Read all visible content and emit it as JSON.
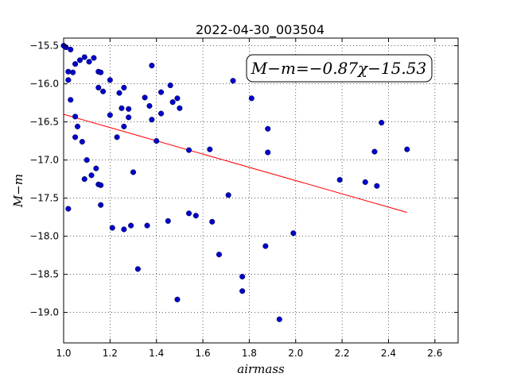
{
  "chart_data": {
    "type": "scatter",
    "title": "2022-04-30_003504",
    "xlabel": "airmass",
    "ylabel": "M−m",
    "xlim": [
      1.0,
      2.7
    ],
    "ylim": [
      -19.4,
      -15.4
    ],
    "xticks": [
      1.0,
      1.2,
      1.4,
      1.6,
      1.8,
      2.0,
      2.2,
      2.4,
      2.6
    ],
    "xtick_labels": [
      "1.0",
      "1.2",
      "1.4",
      "1.6",
      "1.8",
      "2.0",
      "2.2",
      "2.4",
      "2.6"
    ],
    "yticks": [
      -15.5,
      -16.0,
      -16.5,
      -17.0,
      -17.5,
      -18.0,
      -18.5,
      -19.0
    ],
    "ytick_labels": [
      "−15.5",
      "−16.0",
      "−16.5",
      "−17.0",
      "−17.5",
      "−18.0",
      "−18.5",
      "−19.0"
    ],
    "grid": true,
    "annotation": "M−m=−0.87χ−15.53",
    "point_color": "#0000cc",
    "fit_color": "#ff0000",
    "fit_line": {
      "slope": -0.87,
      "intercept": -15.53,
      "x_range": [
        1.0,
        2.48
      ]
    },
    "points": [
      [
        1.0,
        -15.5
      ],
      [
        1.01,
        -15.52
      ],
      [
        1.02,
        -15.84
      ],
      [
        1.02,
        -15.95
      ],
      [
        1.03,
        -15.55
      ],
      [
        1.03,
        -16.21
      ],
      [
        1.04,
        -15.85
      ],
      [
        1.05,
        -15.74
      ],
      [
        1.05,
        -16.43
      ],
      [
        1.05,
        -16.7
      ],
      [
        1.06,
        -16.56
      ],
      [
        1.07,
        -15.69
      ],
      [
        1.08,
        -16.76
      ],
      [
        1.09,
        -15.65
      ],
      [
        1.09,
        -17.25
      ],
      [
        1.1,
        -17.0
      ],
      [
        1.11,
        -15.71
      ],
      [
        1.12,
        -17.2
      ],
      [
        1.13,
        -15.66
      ],
      [
        1.14,
        -17.11
      ],
      [
        1.15,
        -15.84
      ],
      [
        1.15,
        -16.05
      ],
      [
        1.15,
        -17.32
      ],
      [
        1.16,
        -17.33
      ],
      [
        1.16,
        -17.59
      ],
      [
        1.16,
        -15.85
      ],
      [
        1.17,
        -16.1
      ],
      [
        1.02,
        -17.64
      ],
      [
        1.2,
        -15.95
      ],
      [
        1.2,
        -16.41
      ],
      [
        1.21,
        -17.89
      ],
      [
        1.23,
        -16.7
      ],
      [
        1.24,
        -16.12
      ],
      [
        1.25,
        -16.32
      ],
      [
        1.26,
        -16.05
      ],
      [
        1.26,
        -16.56
      ],
      [
        1.26,
        -17.91
      ],
      [
        1.28,
        -16.44
      ],
      [
        1.28,
        -16.33
      ],
      [
        1.29,
        -17.86
      ],
      [
        1.3,
        -17.16
      ],
      [
        1.32,
        -18.43
      ],
      [
        1.35,
        -16.18
      ],
      [
        1.36,
        -17.86
      ],
      [
        1.37,
        -16.29
      ],
      [
        1.38,
        -15.76
      ],
      [
        1.38,
        -16.47
      ],
      [
        1.4,
        -16.75
      ],
      [
        1.42,
        -16.39
      ],
      [
        1.42,
        -16.11
      ],
      [
        1.45,
        -17.8
      ],
      [
        1.46,
        -16.02
      ],
      [
        1.47,
        -16.24
      ],
      [
        1.49,
        -16.19
      ],
      [
        1.5,
        -16.32
      ],
      [
        1.49,
        -18.83
      ],
      [
        1.54,
        -16.87
      ],
      [
        1.54,
        -17.7
      ],
      [
        1.57,
        -17.73
      ],
      [
        1.63,
        -16.86
      ],
      [
        1.64,
        -17.81
      ],
      [
        1.67,
        -18.24
      ],
      [
        1.71,
        -17.46
      ],
      [
        1.73,
        -15.96
      ],
      [
        1.77,
        -18.53
      ],
      [
        1.77,
        -18.72
      ],
      [
        1.81,
        -16.19
      ],
      [
        1.87,
        -18.13
      ],
      [
        1.88,
        -16.59
      ],
      [
        1.88,
        -16.9
      ],
      [
        1.93,
        -19.09
      ],
      [
        1.99,
        -17.96
      ],
      [
        2.19,
        -17.26
      ],
      [
        2.3,
        -17.29
      ],
      [
        2.34,
        -16.89
      ],
      [
        2.35,
        -17.34
      ],
      [
        2.37,
        -16.51
      ],
      [
        2.48,
        -16.86
      ]
    ]
  }
}
